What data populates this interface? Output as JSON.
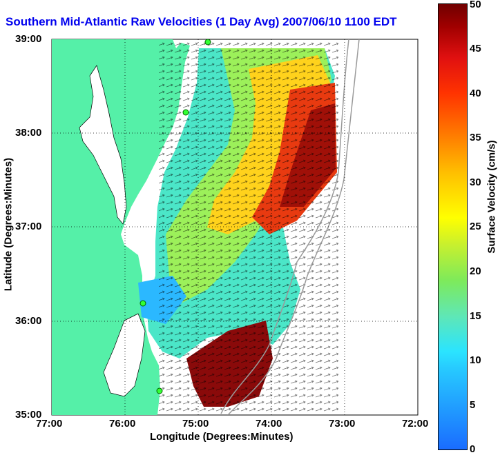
{
  "title": "Southern Mid-Atlantic Raw Velocities (1 Day Avg) 2007/06/10 1100 EDT",
  "xlabel": "Longitude (Degrees:Minutes)",
  "ylabel": "Latitude (Degrees:Minutes)",
  "colorbar": {
    "label": "Surface Velocity (cm/s)",
    "ticks": [
      "0",
      "5",
      "10",
      "15",
      "20",
      "25",
      "30",
      "35",
      "40",
      "45",
      "50"
    ]
  },
  "x_ticks": [
    "77:00",
    "76:00",
    "75:00",
    "74:00",
    "73:00",
    "72:00"
  ],
  "y_ticks": [
    "39:00",
    "38:00",
    "37:00",
    "36:00",
    "35:00"
  ],
  "colors": {
    "land": "#55f0a8",
    "title": "#0000ee"
  },
  "chart_data": {
    "type": "heatmap",
    "xlim": [
      -77,
      -72
    ],
    "ylim": [
      35,
      39
    ],
    "value_range": [
      0,
      50
    ],
    "units": "cm/s"
  }
}
